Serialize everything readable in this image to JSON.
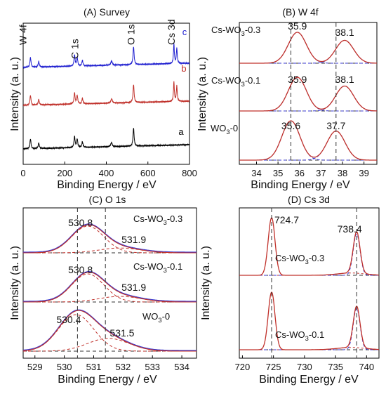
{
  "figure": {
    "panels": [
      {
        "id": "A",
        "title": "(A) Survey",
        "xlabel": "Binding Energy / eV",
        "ylabel": "Intensity (a. u.)",
        "xlim": [
          0,
          800
        ],
        "xticks": [
          0,
          200,
          400,
          600,
          800
        ],
        "peak_labels": [
          {
            "text": "W 4f",
            "x": 35
          },
          {
            "text": "C 1s",
            "x": 285
          },
          {
            "text": "O 1s",
            "x": 531
          },
          {
            "text": "Cs 3d",
            "x": 725
          }
        ],
        "traces": [
          {
            "label": "c",
            "color": "#2020d0"
          },
          {
            "label": "b",
            "color": "#c0302a"
          },
          {
            "label": "a",
            "color": "#000000"
          }
        ]
      },
      {
        "id": "B",
        "title": "(B) W 4f",
        "xlabel": "Binding Energy / eV",
        "ylabel": "Intensity (a. u.)",
        "xlim": [
          33.2,
          39.6
        ],
        "xticks": [
          34,
          35,
          36,
          37,
          38,
          39
        ],
        "vlines": [
          35.6,
          37.7
        ],
        "spectra": [
          {
            "sample": "Cs-WO",
            "sub": "3",
            "suffix": "-0.3",
            "peaks": [
              {
                "text": "35.9",
                "x": 35.9
              },
              {
                "text": "38.1",
                "x": 38.1
              }
            ]
          },
          {
            "sample": "Cs-WO",
            "sub": "3",
            "suffix": "-0.1",
            "peaks": [
              {
                "text": "35.9",
                "x": 35.9
              },
              {
                "text": "38.1",
                "x": 38.1
              }
            ]
          },
          {
            "sample": "WO",
            "sub": "3",
            "suffix": "-0",
            "peaks": [
              {
                "text": "35.6",
                "x": 35.6
              },
              {
                "text": "37.7",
                "x": 37.7
              }
            ]
          }
        ]
      },
      {
        "id": "C",
        "title": "(C) O 1s",
        "xlabel": "Binding Energy / eV",
        "ylabel": "Intensity (a. u.)",
        "xlim": [
          528.6,
          534.5
        ],
        "xticks": [
          529,
          530,
          531,
          532,
          533,
          534
        ],
        "vlines": [
          530.45,
          531.4
        ],
        "spectra": [
          {
            "sample": "Cs-WO",
            "sub": "3",
            "suffix": "-0.3",
            "peaks": [
              {
                "text": "530.8",
                "x": 530.8
              },
              {
                "text": "531.9",
                "x": 531.9
              }
            ]
          },
          {
            "sample": "Cs-WO",
            "sub": "3",
            "suffix": "-0.1",
            "peaks": [
              {
                "text": "530.8",
                "x": 530.8
              },
              {
                "text": "531.9",
                "x": 531.9
              }
            ]
          },
          {
            "sample": "WO",
            "sub": "3",
            "suffix": "-0",
            "peaks": [
              {
                "text": "530.4",
                "x": 530.4
              },
              {
                "text": "531.5",
                "x": 531.5
              }
            ]
          }
        ]
      },
      {
        "id": "D",
        "title": "(D) Cs 3d",
        "xlabel": "Binding Energy / eV",
        "ylabel": "Intensity (a. u.)",
        "xlim": [
          719.5,
          742
        ],
        "xticks": [
          720,
          725,
          730,
          735,
          740
        ],
        "vlines": [
          724.7,
          738.4
        ],
        "peak_labels": [
          {
            "text": "724.7",
            "x": 724.7
          },
          {
            "text": "738.4",
            "x": 738.4
          }
        ],
        "spectra": [
          {
            "sample": "Cs-WO",
            "sub": "3",
            "suffix": "-0.3"
          },
          {
            "sample": "Cs-WO",
            "sub": "3",
            "suffix": "-0.1"
          }
        ]
      }
    ]
  },
  "chart_data": [
    {
      "type": "line",
      "title": "(A) Survey",
      "xlabel": "Binding Energy / eV",
      "ylabel": "Intensity (a. u.)",
      "xlim": [
        0,
        800
      ],
      "series": [
        {
          "name": "c",
          "peaks_x": [
            35,
            285,
            531,
            725,
            739
          ]
        },
        {
          "name": "b",
          "peaks_x": [
            35,
            285,
            531,
            725,
            739
          ]
        },
        {
          "name": "a",
          "peaks_x": [
            35,
            250,
            285,
            420,
            531
          ]
        }
      ]
    },
    {
      "type": "line",
      "title": "(B) W 4f",
      "xlabel": "Binding Energy / eV",
      "ylabel": "Intensity (a. u.)",
      "xlim": [
        33.2,
        39.6
      ],
      "series": [
        {
          "name": "Cs-WO3-0.3",
          "peaks_x": [
            35.9,
            38.1
          ]
        },
        {
          "name": "Cs-WO3-0.1",
          "peaks_x": [
            35.9,
            38.1
          ]
        },
        {
          "name": "WO3-0",
          "peaks_x": [
            35.6,
            37.7
          ]
        }
      ]
    },
    {
      "type": "line",
      "title": "(C) O 1s",
      "xlabel": "Binding Energy / eV",
      "ylabel": "Intensity (a. u.)",
      "xlim": [
        528.6,
        534.5
      ],
      "series": [
        {
          "name": "Cs-WO3-0.3",
          "peaks_x": [
            530.8,
            531.9
          ]
        },
        {
          "name": "Cs-WO3-0.1",
          "peaks_x": [
            530.8,
            531.9
          ]
        },
        {
          "name": "WO3-0",
          "peaks_x": [
            530.4,
            531.5
          ]
        }
      ]
    },
    {
      "type": "line",
      "title": "(D) Cs 3d",
      "xlabel": "Binding Energy / eV",
      "ylabel": "Intensity (a. u.)",
      "xlim": [
        719.5,
        742
      ],
      "series": [
        {
          "name": "Cs-WO3-0.3",
          "peaks_x": [
            724.7,
            738.4
          ]
        },
        {
          "name": "Cs-WO3-0.1",
          "peaks_x": [
            724.7,
            738.4
          ]
        }
      ]
    }
  ]
}
